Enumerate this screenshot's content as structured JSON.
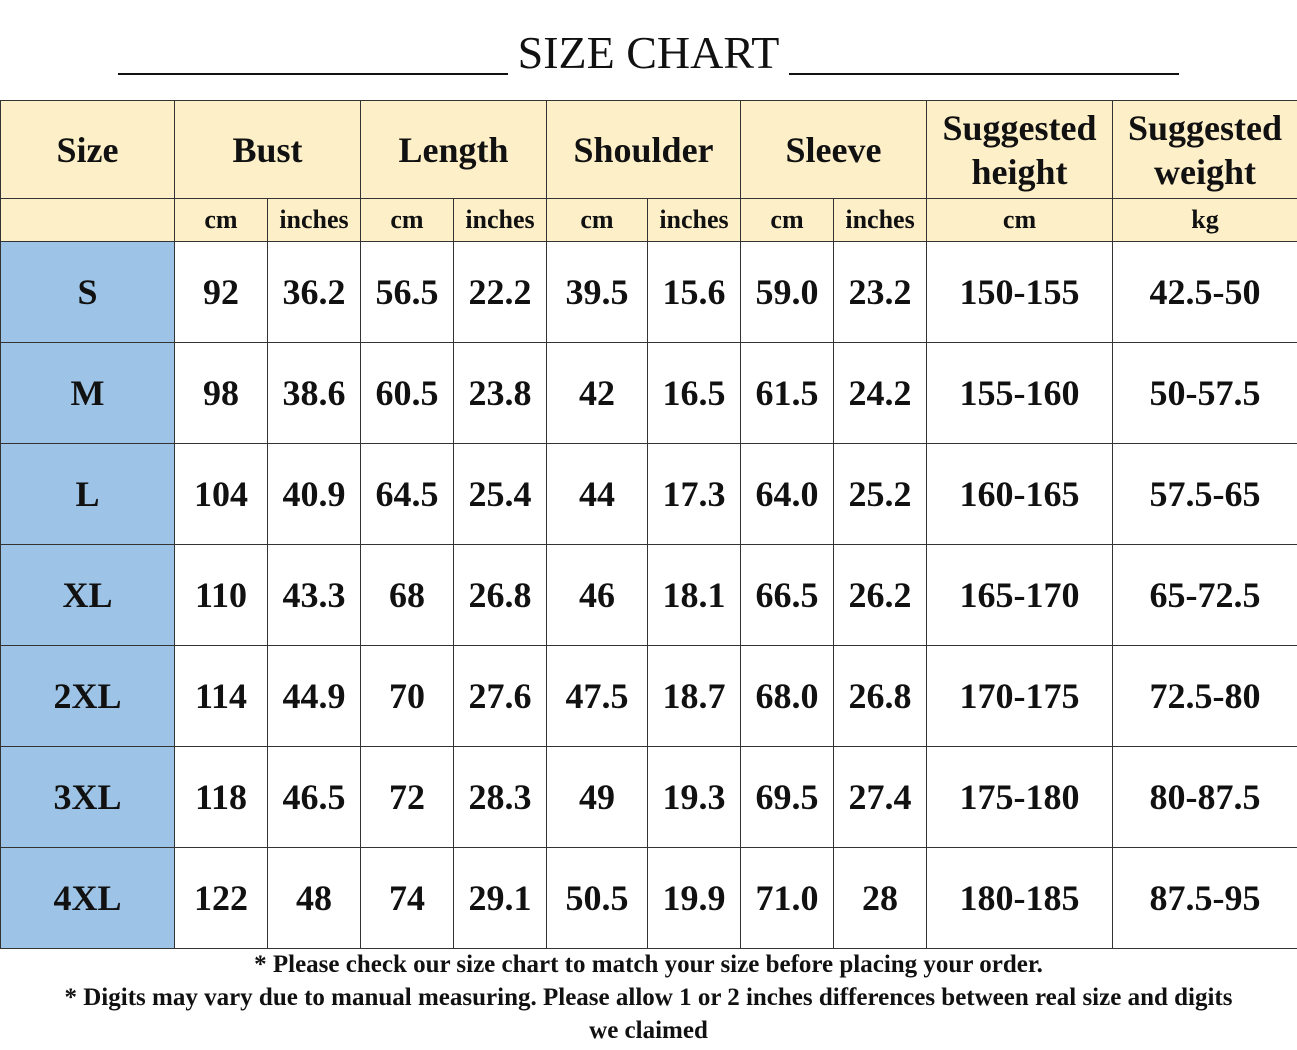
{
  "title": "SIZE CHART",
  "header": {
    "size": "Size",
    "groups": [
      "Bust",
      "Length",
      "Shoulder",
      "Sleeve"
    ],
    "suggested_height": "Suggested height",
    "suggested_weight": "Suggested weight",
    "units": {
      "cm": "cm",
      "inches": "inches",
      "kg": "kg"
    }
  },
  "rows": [
    {
      "size": "S",
      "values": [
        "92",
        "36.2",
        "56.5",
        "22.2",
        "39.5",
        "15.6",
        "59.0",
        "23.2",
        "150-155",
        "42.5-50"
      ]
    },
    {
      "size": "M",
      "values": [
        "98",
        "38.6",
        "60.5",
        "23.8",
        "42",
        "16.5",
        "61.5",
        "24.2",
        "155-160",
        "50-57.5"
      ]
    },
    {
      "size": "L",
      "values": [
        "104",
        "40.9",
        "64.5",
        "25.4",
        "44",
        "17.3",
        "64.0",
        "25.2",
        "160-165",
        "57.5-65"
      ]
    },
    {
      "size": "XL",
      "values": [
        "110",
        "43.3",
        "68",
        "26.8",
        "46",
        "18.1",
        "66.5",
        "26.2",
        "165-170",
        "65-72.5"
      ]
    },
    {
      "size": "2XL",
      "values": [
        "114",
        "44.9",
        "70",
        "27.6",
        "47.5",
        "18.7",
        "68.0",
        "26.8",
        "170-175",
        "72.5-80"
      ]
    },
    {
      "size": "3XL",
      "values": [
        "118",
        "46.5",
        "72",
        "28.3",
        "49",
        "19.3",
        "69.5",
        "27.4",
        "175-180",
        "80-87.5"
      ]
    },
    {
      "size": "4XL",
      "values": [
        "122",
        "48",
        "74",
        "29.1",
        "50.5",
        "19.9",
        "71.0",
        "28",
        "180-185",
        "87.5-95"
      ]
    }
  ],
  "notes": [
    "* Please check our size chart to match your size before placing your order.",
    "* Digits may vary due to manual measuring. Please allow 1 or 2 inches differences between real size and digits",
    "we claimed"
  ],
  "colors": {
    "header_bg": "#fdefc8",
    "size_column_bg": "#9dc3e6"
  }
}
